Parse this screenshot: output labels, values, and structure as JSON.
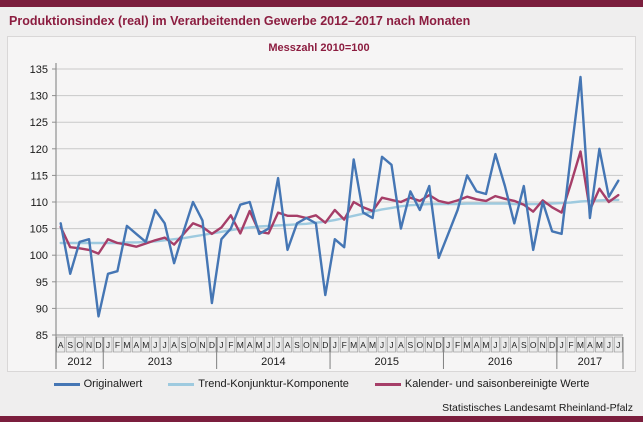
{
  "header": {
    "title": "Produktionsindex (real) im Verarbeitenden Gewerbe 2012–2017 nach Monaten"
  },
  "chart_data": {
    "type": "line",
    "title": "Produktionsindex (real) im Verarbeitenden Gewerbe 2012–2017 nach Monaten",
    "subtitle": "Messzahl 2010=100",
    "ylabel": "Messzahl 2010=100",
    "ylim": [
      85,
      135
    ],
    "ytick_step": 5,
    "grid": true,
    "legend_position": "bottom",
    "x_month_labels": [
      "A",
      "S",
      "O",
      "N",
      "D",
      "J",
      "F",
      "M",
      "A",
      "M",
      "J",
      "J",
      "A",
      "S",
      "O",
      "N",
      "D",
      "J",
      "F",
      "M",
      "A",
      "M",
      "J",
      "J",
      "A",
      "S",
      "O",
      "N",
      "D",
      "J",
      "F",
      "M",
      "A",
      "M",
      "J",
      "J",
      "A",
      "S",
      "O",
      "N",
      "D",
      "J",
      "F",
      "M",
      "A",
      "M",
      "J",
      "J",
      "A",
      "S",
      "O",
      "N",
      "D",
      "J",
      "F",
      "M",
      "A",
      "M",
      "J",
      "J"
    ],
    "year_groups": [
      {
        "year": "2012",
        "count": 5
      },
      {
        "year": "2013",
        "count": 12
      },
      {
        "year": "2014",
        "count": 12
      },
      {
        "year": "2015",
        "count": 12
      },
      {
        "year": "2016",
        "count": 12
      },
      {
        "year": "2017",
        "count": 7
      }
    ],
    "series": [
      {
        "name": "Originalwert",
        "color": "#4576b4",
        "values": [
          106,
          96.5,
          102.5,
          103,
          88.5,
          96.5,
          97,
          105.5,
          104,
          102.5,
          108.5,
          106,
          98.5,
          104.5,
          110,
          106.5,
          91,
          103,
          105,
          109.5,
          110,
          104,
          105,
          114.5,
          101,
          106,
          107,
          106,
          92.5,
          103,
          101.5,
          118,
          108,
          107,
          118.5,
          117,
          105,
          112,
          108.5,
          113,
          99.5,
          104,
          108.5,
          115,
          112,
          111.5,
          119,
          113,
          106,
          113,
          101,
          110,
          104.5,
          104,
          119,
          133.5,
          107,
          120,
          111,
          114
        ]
      },
      {
        "name": "Trend-Konjunktur-Komponente",
        "color": "#9ecadf",
        "values": [
          102.3,
          102.3,
          102.3,
          102.3,
          102.3,
          102.3,
          102.3,
          102.4,
          102.4,
          102.5,
          102.6,
          102.8,
          103,
          103.2,
          103.5,
          103.8,
          104.1,
          104.4,
          104.7,
          105,
          105.2,
          105.4,
          105.5,
          105.6,
          105.7,
          105.8,
          105.9,
          106.1,
          106.3,
          106.6,
          107,
          107.4,
          107.8,
          108.2,
          108.6,
          108.9,
          109.2,
          109.4,
          109.5,
          109.6,
          109.6,
          109.6,
          109.6,
          109.7,
          109.7,
          109.7,
          109.7,
          109.7,
          109.6,
          109.6,
          109.6,
          109.6,
          109.7,
          109.8,
          109.9,
          110.1,
          110.2,
          110.3,
          110.4,
          110.4
        ]
      },
      {
        "name": "Kalender- und saisonbereinigte Werte",
        "color": "#a63e68",
        "values": [
          105.3,
          101.5,
          101.3,
          101,
          100.3,
          103,
          102.3,
          102,
          101.6,
          102.2,
          102.8,
          103.3,
          102,
          104,
          106,
          105.3,
          104,
          105.2,
          107.5,
          104.1,
          108.3,
          104.4,
          104.1,
          108,
          107.4,
          107.4,
          107,
          107.5,
          106.1,
          108.5,
          106.7,
          110,
          109,
          108.3,
          110.8,
          110.4,
          110,
          110.8,
          110.2,
          111.3,
          110.2,
          109.8,
          110.3,
          111,
          110.5,
          110.2,
          111.1,
          110.6,
          110.2,
          109.5,
          108.2,
          110.3,
          109,
          108,
          113.5,
          119.5,
          108.5,
          112.5,
          110,
          111.3
        ]
      }
    ]
  },
  "footer": {
    "credit": "Statistisches Landesamt Rheinland-Pfalz"
  },
  "colors": {
    "bar": "#7b1e3d",
    "title_text": "#8c1d40",
    "panel_bg": "#f6f5f5",
    "grid": "#c9c9c9",
    "axis": "#8f8f8f",
    "month_box_fill": "#ebebeb",
    "month_box_stroke": "#9e9e9e"
  }
}
